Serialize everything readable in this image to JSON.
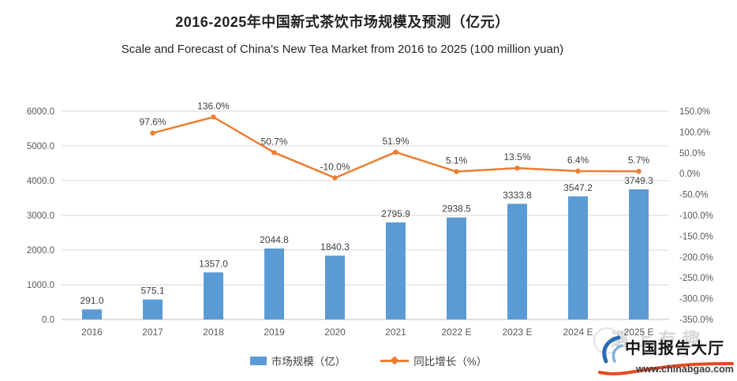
{
  "header": {
    "title_zh": "2016-2025年中国新式茶饮市场规模及预测（亿元）",
    "title_en": "Scale and Forecast of China's New Tea Market from 2016 to 2025 (100 million yuan)"
  },
  "chart_data": {
    "type": "bar",
    "title": "2016-2025年中国新式茶饮市场规模及预测（亿元）",
    "subtitle": "Scale and Forecast of China's New Tea Market from 2016 to 2025 (100 million yuan)",
    "categories": [
      "2016",
      "2017",
      "2018",
      "2019",
      "2020",
      "2021",
      "2022 E",
      "2023 E",
      "2024 E",
      "2025 E"
    ],
    "series": [
      {
        "name": "市场规模（亿）",
        "type": "bar",
        "axis": "left",
        "color": "#5B9BD5",
        "values": [
          291.0,
          575.1,
          1357.0,
          2044.8,
          1840.3,
          2795.9,
          2938.5,
          3333.8,
          3547.2,
          3749.3
        ]
      },
      {
        "name": "同比增长（%）",
        "type": "line",
        "axis": "right",
        "color": "#ED7D31",
        "values": [
          null,
          97.6,
          136.0,
          50.7,
          -10.0,
          51.9,
          5.1,
          13.5,
          6.4,
          5.7
        ]
      }
    ],
    "left_axis": {
      "min": 0,
      "max": 6000,
      "step": 1000,
      "tick_format": "0.0"
    },
    "right_axis": {
      "min": -350,
      "max": 150,
      "step": 50,
      "tick_format": "0.0%"
    },
    "grid": true,
    "legend_position": "bottom",
    "grid_color": "#D9D9D9",
    "baseline_color": "#BFBFBF",
    "axis_text_color": "#595959",
    "label_text_color": "#404040"
  },
  "branding": {
    "name": "中国报告大厅",
    "url": "www.chinabgao.com",
    "swoosh_blue": "#2B6CB0",
    "swoosh_light_blue": "#7FB2DD",
    "swoosh_orange": "#E8491F"
  },
  "watermark": {
    "text": "遇上有趣"
  }
}
